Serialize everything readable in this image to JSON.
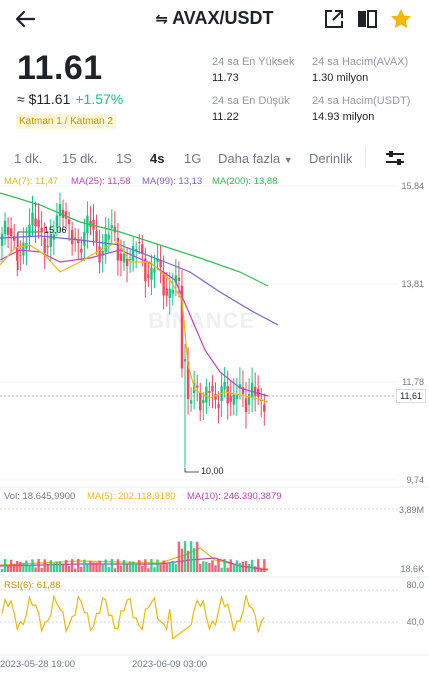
{
  "header": {
    "title": "AVAX/USDT",
    "icons": [
      "back-arrow-icon",
      "swap-icon",
      "share-icon",
      "book-icon",
      "star-icon"
    ]
  },
  "summary": {
    "last_price": "11.61",
    "fiat": "≈ $11.61",
    "change": "+1.57%",
    "tag": "Katman 1 / Katman 2"
  },
  "stats": {
    "high_label": "24 sa En Yüksek",
    "high_value": "11.73",
    "low_label": "24 sa En Düşük",
    "low_value": "11.22",
    "vol_base_label": "24 sa Hacim(AVAX)",
    "vol_base_value": "1.30 milyon",
    "vol_quote_label": "24 sa Hacim(USDT)",
    "vol_quote_value": "14.93 milyon"
  },
  "tabs": {
    "t1": "1 dk.",
    "t2": "15 dk.",
    "t3": "1S",
    "t4": "4s",
    "t5": "1G",
    "more": "Daha fazla",
    "depth": "Derinlik",
    "active": "4s"
  },
  "indicators": {
    "ma7": "MA(7): 11,47",
    "ma25": "MA(25): 11,58",
    "ma99": "MA(99): 13,13",
    "ma200": "MA(200): 13,88"
  },
  "axis": {
    "p1": "15,84",
    "p2": "13,81",
    "p3": "11,78",
    "p4": "9,74",
    "current": "11,61",
    "v_high": "3,89M",
    "v_low": "18,6K",
    "r_high": "80,0",
    "r_low": "40,0"
  },
  "annotations": {
    "high": "15,06",
    "low": "10,00"
  },
  "volume": {
    "vol": "Vol: 18.645,9900",
    "ma5": "MA(5): 202.118,9180",
    "ma10": "MA(10): 246.390,3879"
  },
  "rsi": {
    "label": "RSI(6): 61,88"
  },
  "time_axis": {
    "t1": "2023-05-28 19:00",
    "t2": "2023-06-09 03:00"
  },
  "watermark": "BINANCE",
  "colors": {
    "up": "#0ecb81",
    "down": "#f6465d",
    "ma7": "#f0b90b",
    "ma25": "#c63fc3",
    "ma99": "#7b61d6",
    "ma200": "#2fbf4f",
    "brand": "#f0b90b"
  }
}
